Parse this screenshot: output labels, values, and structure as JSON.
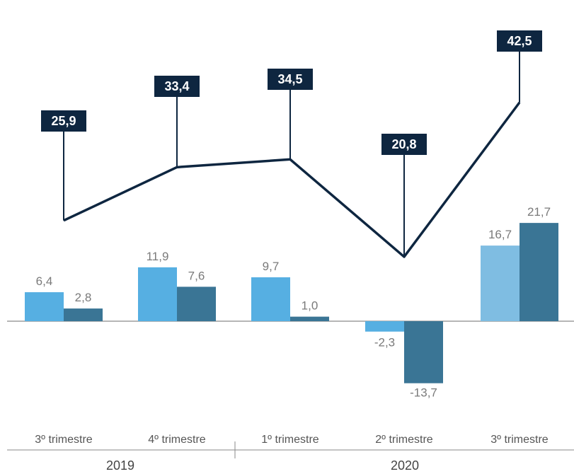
{
  "chart_data": {
    "type": "bar",
    "categories": [
      "3º trimestre",
      "4º trimestre",
      "1º trimestre",
      "2º trimestre",
      "3º trimestre"
    ],
    "groups": [
      {
        "label": "2019",
        "categories": [
          0,
          1
        ]
      },
      {
        "label": "2020",
        "categories": [
          2,
          3,
          4
        ]
      }
    ],
    "series": [
      {
        "values": [
          6.4,
          11.9,
          9.7,
          -2.3,
          16.7
        ],
        "labels": [
          "6,4",
          "11,9",
          "9,7",
          "-2,3",
          "16,7"
        ]
      },
      {
        "values": [
          2.8,
          7.6,
          1.0,
          -13.7,
          21.7
        ],
        "labels": [
          "2,8",
          "7,6",
          "1,0",
          "-13,7",
          "21,7"
        ]
      },
      {
        "type": "line",
        "values": [
          25.9,
          33.4,
          34.5,
          20.8,
          42.5
        ],
        "labels": [
          "25,9",
          "33,4",
          "34,5",
          "20,8",
          "42,5"
        ]
      }
    ],
    "colors": {
      "series1": "#56afe2",
      "series1_last": "#7fbde2",
      "series2": "#3a7595",
      "line": "#0e2640",
      "zero_line": "#8a8a8a",
      "axis": "#8a8a8a"
    },
    "title": "",
    "xlabel": "",
    "ylabel": ""
  }
}
